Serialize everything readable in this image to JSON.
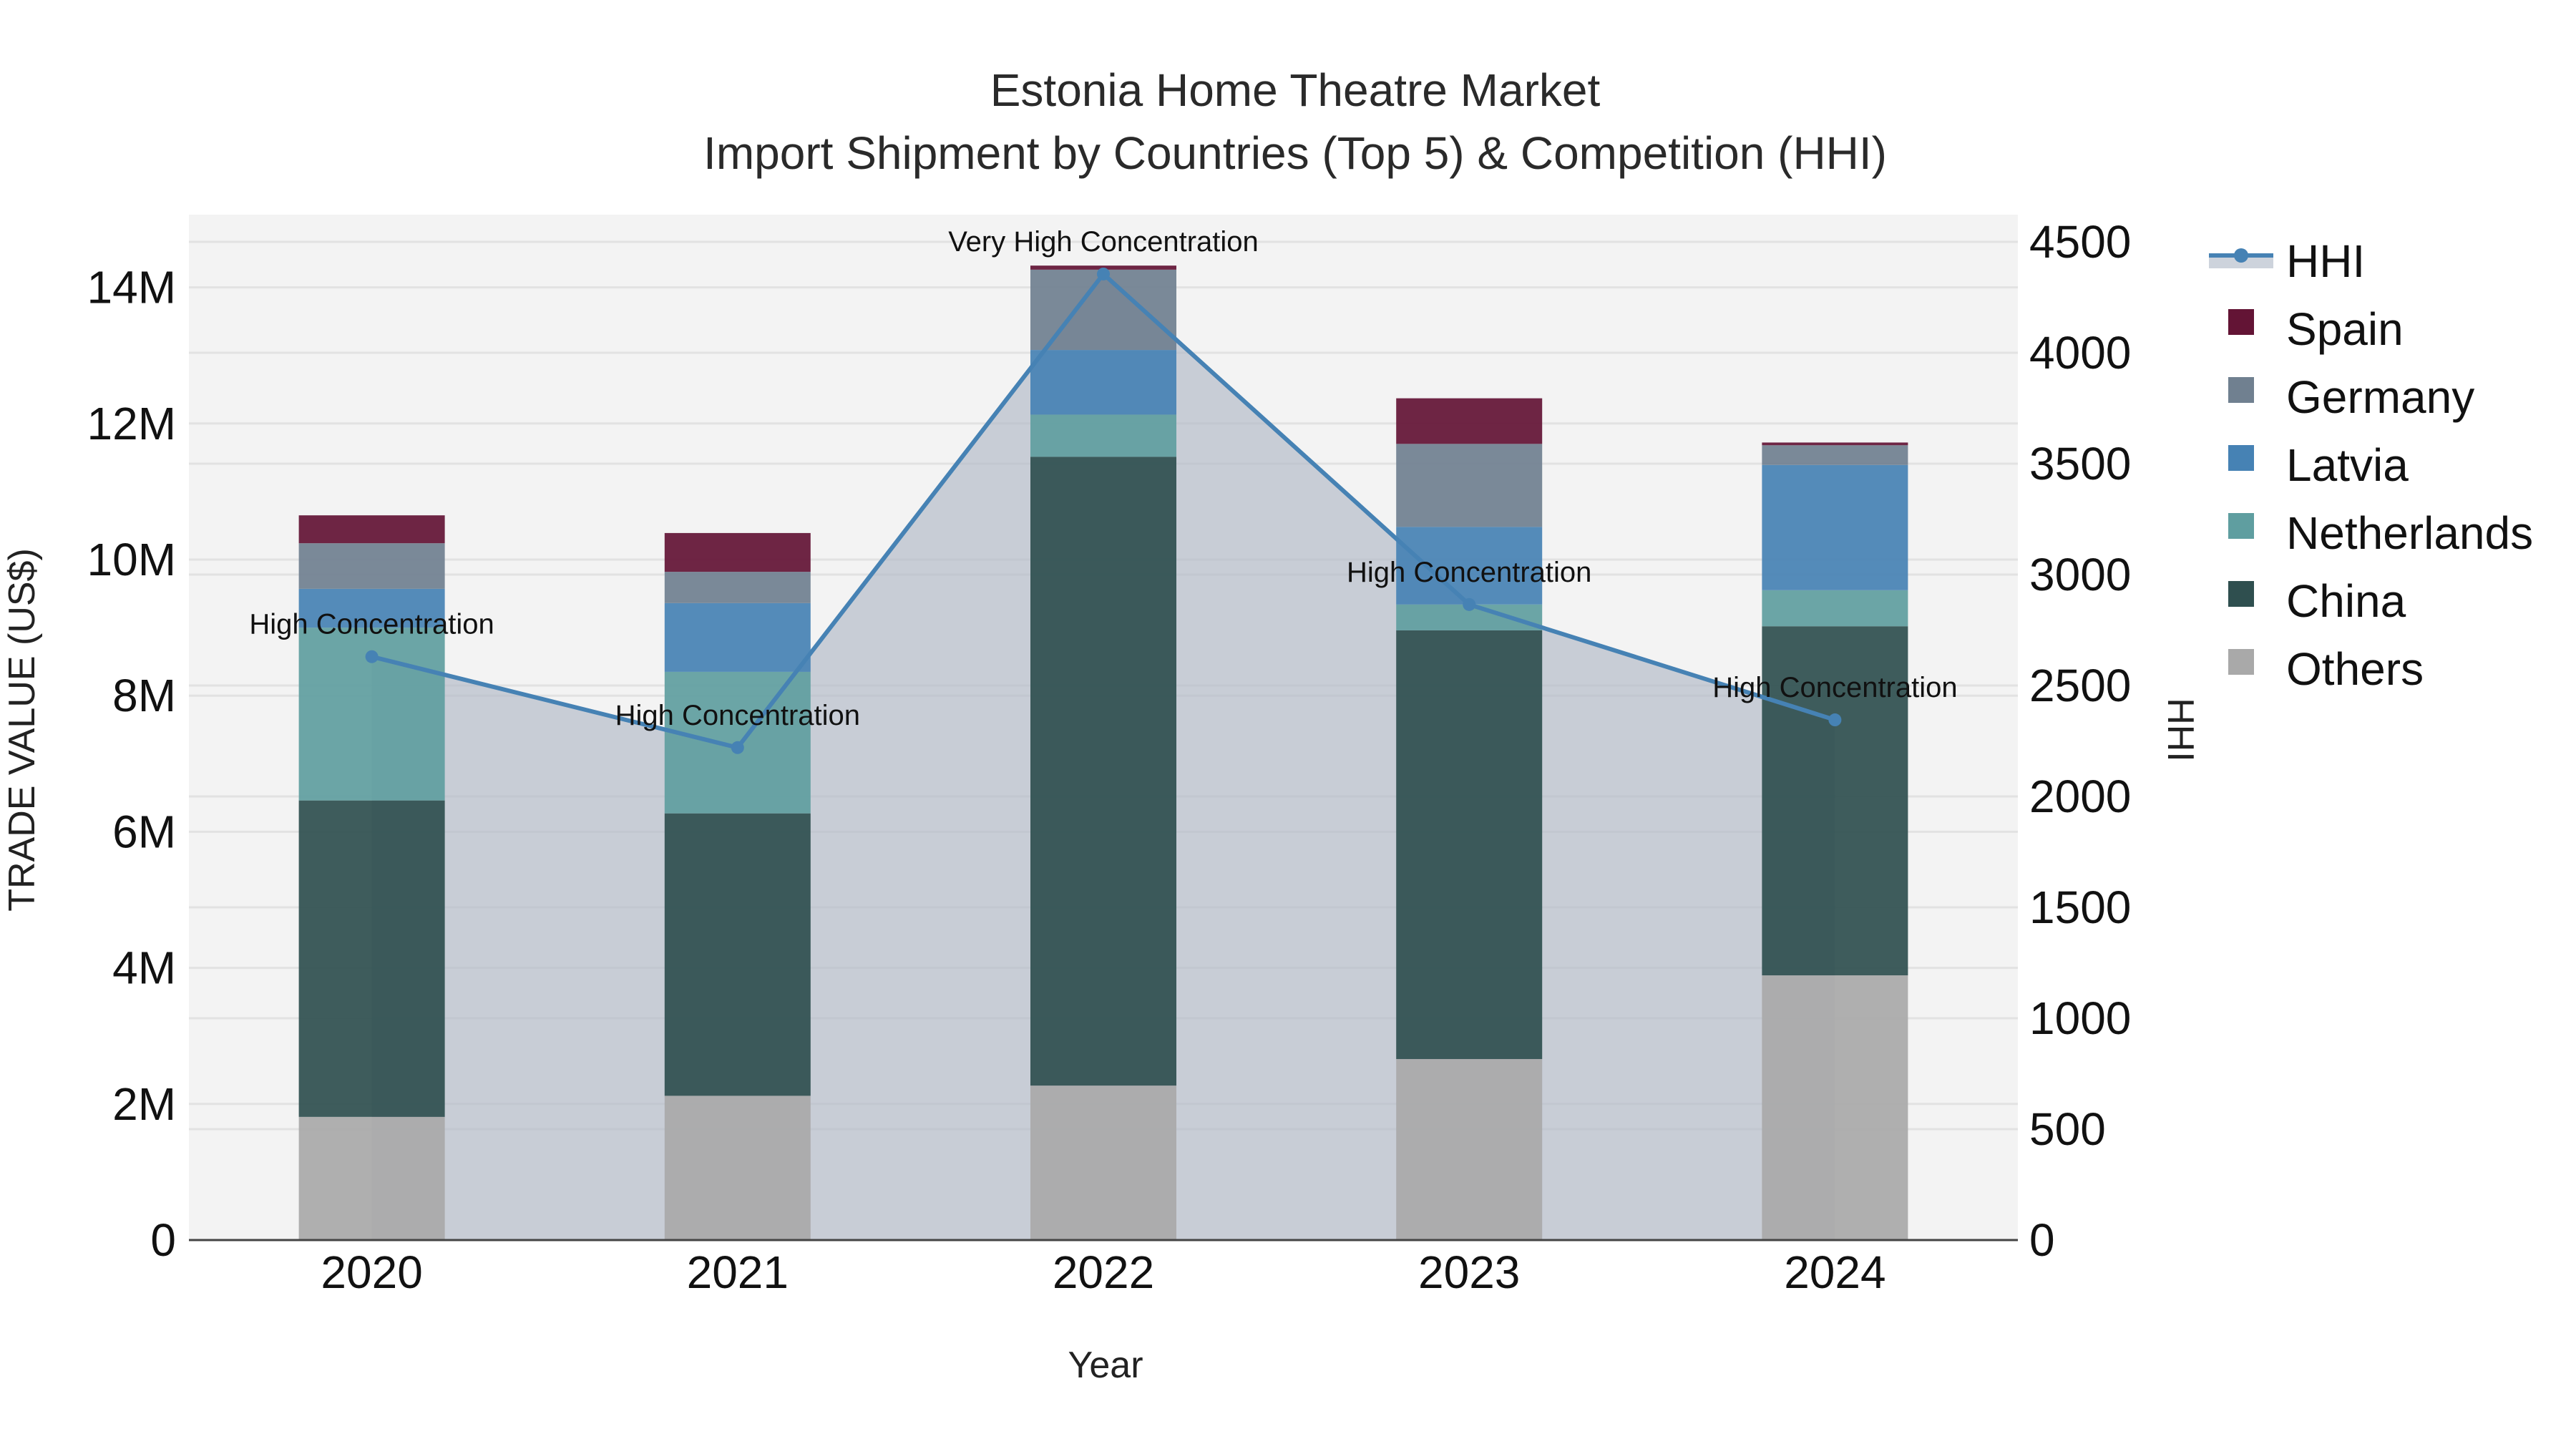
{
  "chart_data": {
    "type": "bar",
    "stacked": true,
    "title": "Estonia Home Theatre Market",
    "subtitle": "Import Shipment by Countries (Top 5) & Competition (HHI)",
    "xlabel": "Year",
    "ylabel": "TRADE VALUE (US$)",
    "y2label": "HHI",
    "categories": [
      "2020",
      "2021",
      "2022",
      "2023",
      "2024"
    ],
    "ylim": [
      0,
      15000000
    ],
    "yticks": [
      0,
      2000000,
      4000000,
      6000000,
      8000000,
      10000000,
      12000000,
      14000000
    ],
    "ytick_labels": [
      "0",
      "2M",
      "4M",
      "6M",
      "8M",
      "10M",
      "12M",
      "14M"
    ],
    "y2lim": [
      0,
      4600
    ],
    "y2ticks": [
      0,
      500,
      1000,
      1500,
      2000,
      2500,
      3000,
      3500,
      4000,
      4500
    ],
    "y2tick_labels": [
      "0",
      "500",
      "1000",
      "1500",
      "2000",
      "2500",
      "3000",
      "3500",
      "4000",
      "4500"
    ],
    "grid": true,
    "legend_position": "right",
    "series": [
      {
        "name": "Others",
        "color": "#a9a9a9",
        "values": [
          1810000,
          2120000,
          2270000,
          2660000,
          3890000
        ]
      },
      {
        "name": "China",
        "color": "#2f4f4f",
        "values": [
          4650000,
          4150000,
          9240000,
          6300000,
          5130000
        ]
      },
      {
        "name": "Netherlands",
        "color": "#5f9ea0",
        "values": [
          2540000,
          2080000,
          620000,
          380000,
          530000
        ]
      },
      {
        "name": "Latvia",
        "color": "#4682b4",
        "values": [
          570000,
          1010000,
          950000,
          1140000,
          1840000
        ]
      },
      {
        "name": "Germany",
        "color": "#708090",
        "values": [
          670000,
          460000,
          1180000,
          1220000,
          290000
        ]
      },
      {
        "name": "Spain",
        "color": "#631435",
        "values": [
          410000,
          570000,
          60000,
          670000,
          40000
        ]
      }
    ],
    "line_series": {
      "name": "HHI",
      "axis": "y2",
      "color": "#4682b4",
      "fill_color": "rgba(176,184,198,0.65)",
      "values": [
        2630,
        2220,
        4355,
        2865,
        2345
      ],
      "annotations": [
        "High Concentration",
        "High Concentration",
        "Very High Concentration",
        "High Concentration",
        "High Concentration"
      ]
    },
    "legend": [
      "HHI",
      "Spain",
      "Germany",
      "Latvia",
      "Netherlands",
      "China",
      "Others"
    ]
  }
}
